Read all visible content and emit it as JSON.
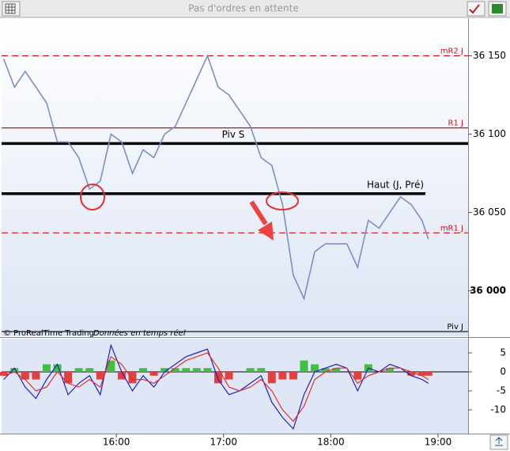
{
  "header": {
    "title": "Pas d'ordres en attente"
  },
  "chart_data": [
    {
      "type": "line",
      "source": "© ProRealTime Trading",
      "source_note": "Données en temps réel",
      "x": [
        14.95,
        15.05,
        15.15,
        15.25,
        15.35,
        15.45,
        15.55,
        15.65,
        15.75,
        15.85,
        15.95,
        16.05,
        16.15,
        16.25,
        16.35,
        16.45,
        16.55,
        16.65,
        16.75,
        16.85,
        16.95,
        17.05,
        17.15,
        17.25,
        17.35,
        17.45,
        17.55,
        17.65,
        17.75,
        17.85,
        17.95,
        18.05,
        18.15,
        18.25,
        18.35,
        18.45,
        18.55,
        18.65,
        18.75,
        18.85,
        18.91
      ],
      "series": [
        {
          "color": "#7b8fc4",
          "values": [
            36148,
            36130,
            36140,
            36130,
            36120,
            36095,
            36095,
            36085,
            36065,
            36070,
            36100,
            36095,
            36075,
            36090,
            36085,
            36100,
            36105,
            36120,
            36135,
            36150,
            36130,
            36125,
            36115,
            36105,
            36085,
            36080,
            36055,
            36010,
            35995,
            36025,
            36030,
            36030,
            36030,
            36015,
            36045,
            36040,
            36050,
            36060,
            36055,
            36045,
            36033
          ]
        }
      ],
      "levels": [
        {
          "name": "mR2 J",
          "value": 36150,
          "color": "#d01010",
          "style": "dashed"
        },
        {
          "name": "R1 J",
          "value": 36104,
          "color": "#d01010",
          "style": "solid"
        },
        {
          "name": "Piv S",
          "value": 36094,
          "color": "#000000",
          "style": "thick"
        },
        {
          "name": "Haut (J, Pré)",
          "value": 36062,
          "color": "#000000",
          "style": "thick"
        },
        {
          "name": "mR1 J",
          "value": 36037,
          "color": "#d01010",
          "style": "dashed"
        },
        {
          "name": "Piv J",
          "value": 35974,
          "color": "#000000",
          "style": "solid"
        }
      ],
      "xlim": [
        14.93,
        19.28
      ],
      "ylim": [
        35971,
        36174
      ],
      "yticks": [
        {
          "value": 36150,
          "label": "36 150"
        },
        {
          "value": 36100,
          "label": "36 100"
        },
        {
          "value": 36050,
          "label": "36 050"
        },
        {
          "value": 36000,
          "label": "36 000"
        }
      ]
    },
    {
      "type": "oscillator",
      "x": [
        14.95,
        15.05,
        15.15,
        15.25,
        15.35,
        15.45,
        15.55,
        15.65,
        15.75,
        15.85,
        15.95,
        16.05,
        16.15,
        16.25,
        16.35,
        16.45,
        16.55,
        16.65,
        16.75,
        16.85,
        16.95,
        17.05,
        17.15,
        17.25,
        17.35,
        17.45,
        17.55,
        17.65,
        17.75,
        17.85,
        17.95,
        18.05,
        18.15,
        18.25,
        18.35,
        18.45,
        18.55,
        18.65,
        18.75,
        18.85,
        18.91
      ],
      "series": [
        {
          "color": "#2020c0",
          "values": [
            -2,
            1,
            -4,
            -7,
            -2,
            2,
            -6,
            -3,
            -1,
            -6,
            7,
            0,
            -5,
            -1,
            -4,
            0,
            2,
            4,
            5,
            6,
            -2,
            -6,
            -5,
            -3,
            -1,
            -8,
            -12,
            -15,
            -6,
            0,
            1,
            2,
            1,
            -5,
            1,
            0,
            2,
            1,
            -1,
            -2,
            -3
          ]
        },
        {
          "color": "#e03030",
          "values": [
            -1,
            0,
            -2,
            -5,
            -4,
            0,
            -3,
            -4,
            -2,
            -4,
            4,
            2,
            -2,
            -2,
            -3,
            -1,
            1,
            3,
            4,
            5,
            1,
            -4,
            -5,
            -4,
            -2,
            -5,
            -10,
            -13,
            -9,
            -2,
            0,
            1,
            1,
            -3,
            -1,
            0,
            1,
            1,
            0,
            -1,
            -2
          ]
        }
      ],
      "histogram": {
        "colors": [
          "#40c040",
          "#e04040"
        ],
        "values": [
          -1,
          1,
          -2,
          -2,
          2,
          2,
          -3,
          1,
          1,
          -2,
          3,
          -2,
          -3,
          1,
          -1,
          1,
          1,
          1,
          1,
          1,
          -3,
          -2,
          0,
          1,
          1,
          -3,
          -2,
          -2,
          3,
          2,
          1,
          1,
          0,
          -2,
          2,
          0,
          1,
          0,
          -1,
          -1,
          -1
        ]
      },
      "xlim": [
        14.93,
        19.28
      ],
      "ylim": [
        -16.25,
        8.75
      ],
      "yticks": [
        5,
        0,
        -5,
        -10
      ],
      "xticks": [
        {
          "value": 16,
          "label": "16:00"
        },
        {
          "value": 17,
          "label": "17:00"
        },
        {
          "value": 18,
          "label": "18:00"
        },
        {
          "value": 19,
          "label": "19:00"
        }
      ]
    }
  ]
}
